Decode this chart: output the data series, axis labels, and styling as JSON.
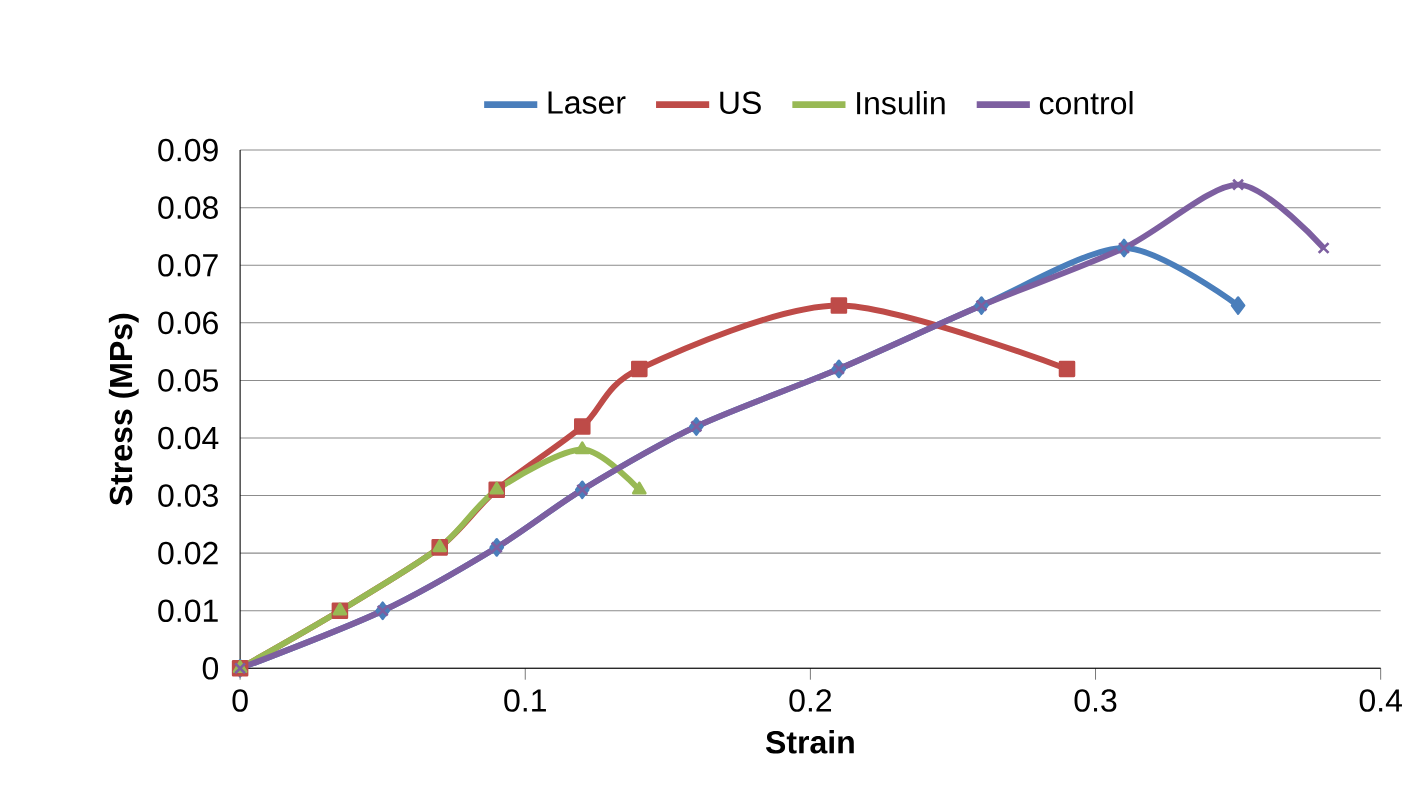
{
  "chart_data": {
    "type": "line",
    "xlabel": "Strain",
    "ylabel": "Stress (MPs)",
    "xlim": [
      0,
      0.4
    ],
    "xticks": [
      0,
      0.1,
      0.2,
      0.3,
      0.4
    ],
    "ylim": [
      0,
      0.09
    ],
    "yticks": [
      0,
      0.01,
      0.02,
      0.03,
      0.04,
      0.05,
      0.06,
      0.07,
      0.08,
      0.09
    ],
    "grid": "y",
    "legend": "top",
    "series": [
      {
        "name": "Laser",
        "color": "#4a7ebb",
        "marker": "diamond",
        "x": [
          0,
          0.05,
          0.09,
          0.12,
          0.16,
          0.21,
          0.26,
          0.31,
          0.35
        ],
        "values": [
          0,
          0.01,
          0.021,
          0.031,
          0.042,
          0.052,
          0.063,
          0.073,
          0.063
        ]
      },
      {
        "name": "US",
        "color": "#be4b48",
        "marker": "square",
        "x": [
          0,
          0.035,
          0.07,
          0.09,
          0.12,
          0.14,
          0.21,
          0.29
        ],
        "values": [
          0,
          0.01,
          0.021,
          0.031,
          0.042,
          0.052,
          0.063,
          0.052
        ]
      },
      {
        "name": "Insulin",
        "color": "#98b954",
        "marker": "triangle",
        "x": [
          0,
          0.035,
          0.07,
          0.09,
          0.12,
          0.14
        ],
        "values": [
          0,
          0.01,
          0.021,
          0.031,
          0.038,
          0.031
        ]
      },
      {
        "name": "control",
        "color": "#7d5fa0",
        "marker": "cross",
        "x": [
          0,
          0.05,
          0.09,
          0.12,
          0.16,
          0.21,
          0.26,
          0.31,
          0.35,
          0.38
        ],
        "values": [
          0,
          0.01,
          0.021,
          0.031,
          0.042,
          0.052,
          0.063,
          0.073,
          0.084,
          0.073
        ]
      }
    ]
  }
}
